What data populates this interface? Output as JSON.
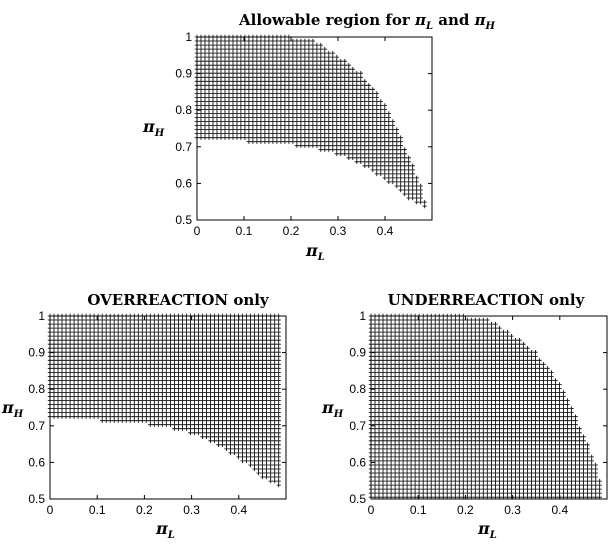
{
  "chart_data": [
    {
      "type": "scatter",
      "marker": "+",
      "title": "Allowable region for π_L and π_H",
      "title_parts": [
        "Allowable region for ",
        "π",
        "L",
        " and ",
        "π",
        "H"
      ],
      "xlabel": "π_L",
      "ylabel": "π_H",
      "xlim": [
        0,
        0.5
      ],
      "ylim": [
        0.5,
        1
      ],
      "xticks": [
        "0",
        "0.1",
        "0.2",
        "0.3",
        "0.4"
      ],
      "yticks": [
        "0.5",
        "0.6",
        "0.7",
        "0.8",
        "0.9",
        "1"
      ],
      "grid": false,
      "region": {
        "x": [
          0,
          0.05,
          0.1,
          0.15,
          0.2,
          0.25,
          0.3,
          0.35,
          0.4,
          0.45,
          0.48,
          0.49
        ],
        "y_lower": [
          0.725,
          0.72,
          0.715,
          0.71,
          0.705,
          0.695,
          0.68,
          0.65,
          0.61,
          0.56,
          0.54,
          0.53
        ],
        "y_upper": [
          1.0,
          1.0,
          1.0,
          1.0,
          1.0,
          0.99,
          0.95,
          0.9,
          0.82,
          0.68,
          0.58,
          0.53
        ]
      }
    },
    {
      "type": "scatter",
      "marker": "+",
      "title": "OVERREACTION only",
      "xlabel": "π_L",
      "ylabel": "π_H",
      "xlim": [
        0,
        0.5
      ],
      "ylim": [
        0.5,
        1
      ],
      "xticks": [
        "0",
        "0.1",
        "0.2",
        "0.3",
        "0.4"
      ],
      "yticks": [
        "0.5",
        "0.6",
        "0.7",
        "0.8",
        "0.9",
        "1"
      ],
      "grid": false,
      "region": {
        "x": [
          0,
          0.05,
          0.1,
          0.15,
          0.2,
          0.25,
          0.3,
          0.35,
          0.4,
          0.45,
          0.48,
          0.49
        ],
        "y_lower": [
          0.725,
          0.72,
          0.715,
          0.71,
          0.705,
          0.695,
          0.68,
          0.65,
          0.61,
          0.56,
          0.54,
          0.53
        ],
        "y_upper": [
          1.0,
          1.0,
          1.0,
          1.0,
          1.0,
          1.0,
          1.0,
          1.0,
          1.0,
          1.0,
          1.0,
          1.0
        ]
      }
    },
    {
      "type": "scatter",
      "marker": "+",
      "title": "UNDERREACTION only",
      "xlabel": "π_L",
      "ylabel": "π_H",
      "xlim": [
        0,
        0.5
      ],
      "ylim": [
        0.5,
        1
      ],
      "xticks": [
        "0",
        "0.1",
        "0.2",
        "0.3",
        "0.4"
      ],
      "yticks": [
        "0.5",
        "0.6",
        "0.7",
        "0.8",
        "0.9",
        "1"
      ],
      "grid": false,
      "region": {
        "x": [
          0,
          0.05,
          0.1,
          0.15,
          0.2,
          0.25,
          0.3,
          0.35,
          0.4,
          0.45,
          0.48,
          0.49
        ],
        "y_lower": [
          0.5,
          0.5,
          0.5,
          0.5,
          0.5,
          0.5,
          0.5,
          0.5,
          0.5,
          0.5,
          0.5,
          0.5
        ],
        "y_upper": [
          1.0,
          1.0,
          1.0,
          1.0,
          1.0,
          0.99,
          0.95,
          0.9,
          0.82,
          0.68,
          0.58,
          0.53
        ]
      }
    }
  ]
}
